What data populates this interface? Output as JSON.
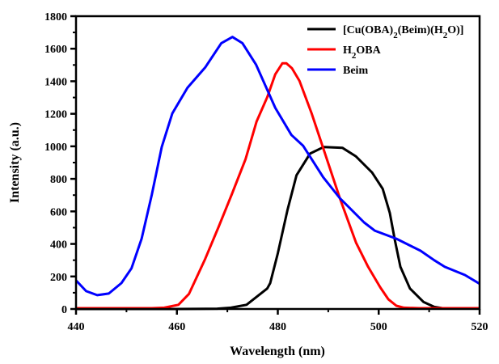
{
  "chart_data": {
    "type": "line",
    "title": "",
    "xlabel": "Wavelength (nm)",
    "ylabel": "Intensity (a.u.)",
    "xlim": [
      440,
      520
    ],
    "ylim": [
      0,
      1800
    ],
    "xticks": [
      440,
      460,
      480,
      500,
      520
    ],
    "yticks": [
      0,
      200,
      400,
      600,
      800,
      1000,
      1200,
      1400,
      1600,
      1800
    ],
    "grid": false,
    "legend_position": "top-right",
    "series": [
      {
        "name": "[Cu(OBA)2(Beim)(H2O)]",
        "color": "#000000",
        "points": [
          [
            440,
            0
          ],
          [
            460,
            0
          ],
          [
            468,
            2
          ],
          [
            470.7,
            8
          ],
          [
            473.8,
            26
          ],
          [
            477.9,
            126
          ],
          [
            478.5,
            159
          ],
          [
            480,
            342
          ],
          [
            481.9,
            607
          ],
          [
            483.7,
            822
          ],
          [
            486.4,
            955
          ],
          [
            489.1,
            996
          ],
          [
            492.8,
            991
          ],
          [
            495.5,
            938
          ],
          [
            498.7,
            839
          ],
          [
            500.8,
            739
          ],
          [
            502.2,
            590
          ],
          [
            503.2,
            424
          ],
          [
            504.3,
            259
          ],
          [
            506.2,
            126
          ],
          [
            508.9,
            43
          ],
          [
            511,
            13
          ],
          [
            513,
            3
          ],
          [
            520,
            3
          ]
        ]
      },
      {
        "name": "H2OBA",
        "color": "#ff0000",
        "points": [
          [
            440,
            5
          ],
          [
            455,
            5
          ],
          [
            457.5,
            8
          ],
          [
            460.3,
            26
          ],
          [
            462.4,
            93
          ],
          [
            465.6,
            308
          ],
          [
            468.3,
            507
          ],
          [
            470.9,
            706
          ],
          [
            473.6,
            921
          ],
          [
            475.8,
            1153
          ],
          [
            477.9,
            1302
          ],
          [
            479.5,
            1443
          ],
          [
            480.9,
            1510
          ],
          [
            481.7,
            1510
          ],
          [
            482.8,
            1480
          ],
          [
            484.3,
            1402
          ],
          [
            486.7,
            1203
          ],
          [
            489.1,
            979
          ],
          [
            492.3,
            681
          ],
          [
            495.5,
            408
          ],
          [
            497.9,
            259
          ],
          [
            500.3,
            134
          ],
          [
            501.9,
            60
          ],
          [
            503.5,
            20
          ],
          [
            505,
            8
          ],
          [
            508,
            5
          ],
          [
            520,
            5
          ]
        ]
      },
      {
        "name": "Beim",
        "color": "#0000ff",
        "points": [
          [
            440,
            176
          ],
          [
            442,
            110
          ],
          [
            444.2,
            85
          ],
          [
            446.5,
            95
          ],
          [
            449,
            159
          ],
          [
            451,
            250
          ],
          [
            453,
            432
          ],
          [
            455,
            700
          ],
          [
            457,
            996
          ],
          [
            459.1,
            1203
          ],
          [
            462.1,
            1360
          ],
          [
            465.6,
            1485
          ],
          [
            468.8,
            1634
          ],
          [
            471,
            1672
          ],
          [
            473,
            1634
          ],
          [
            475.7,
            1501
          ],
          [
            479.5,
            1236
          ],
          [
            482.7,
            1070
          ],
          [
            485,
            1004
          ],
          [
            489,
            810
          ],
          [
            492.3,
            681
          ],
          [
            497.1,
            532
          ],
          [
            499.2,
            482
          ],
          [
            503.5,
            432
          ],
          [
            508.3,
            358
          ],
          [
            511,
            300
          ],
          [
            513.1,
            259
          ],
          [
            517.1,
            209
          ],
          [
            520,
            155
          ]
        ]
      }
    ]
  }
}
